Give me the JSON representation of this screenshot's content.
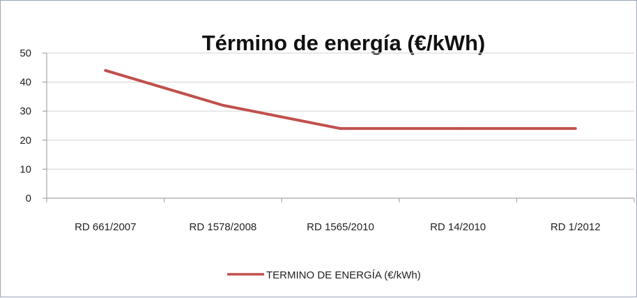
{
  "chart_data": {
    "type": "line",
    "title": "Término de energía (€/kWh)",
    "categories": [
      "RD 661/2007",
      "RD 1578/2008",
      "RD 1565/2010",
      "RD 14/2010",
      "RD 1/2012"
    ],
    "series": [
      {
        "name": "TERMINO DE ENERGÍA (€/kWh)",
        "values": [
          44,
          32,
          24,
          24,
          24
        ],
        "color": "#c0504d"
      }
    ],
    "y_ticks": [
      "0",
      "10",
      "20",
      "30",
      "40",
      "50"
    ],
    "ylim": [
      0,
      50
    ],
    "grid": true,
    "legend_position": "bottom",
    "gridline_color": "#d9d9d9",
    "axis_color": "#a6a6a6"
  }
}
